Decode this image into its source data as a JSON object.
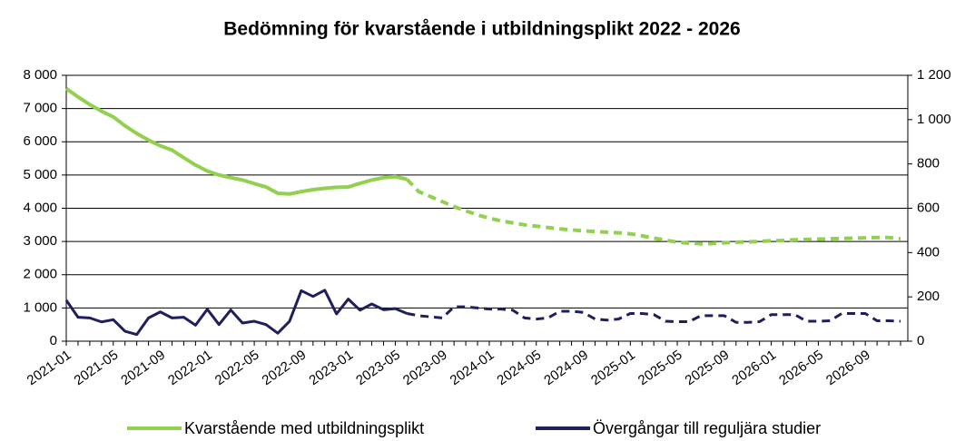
{
  "chart_data": {
    "type": "line",
    "title": "Bedömning för kvarstående i utbildningsplikt 2022 - 2026",
    "categories": [
      "2021-01",
      null,
      null,
      null,
      "2021-05",
      null,
      null,
      null,
      "2021-09",
      null,
      null,
      null,
      "2022-01",
      null,
      null,
      null,
      "2022-05",
      null,
      null,
      null,
      "2022-09",
      null,
      null,
      null,
      "2023-01",
      null,
      null,
      null,
      "2023-05",
      null,
      null,
      null,
      "2023-09",
      null,
      null,
      null,
      "2024-01",
      null,
      null,
      null,
      "2024-05",
      null,
      null,
      null,
      "2024-09",
      null,
      null,
      null,
      "2025-01",
      null,
      null,
      null,
      "2025-05",
      null,
      null,
      null,
      "2025-09",
      null,
      null,
      null,
      "2026-01",
      null,
      null,
      null,
      "2026-05",
      null,
      null,
      null,
      "2026-09",
      null,
      null,
      null
    ],
    "dashed_from": 29,
    "series": [
      {
        "name": "Kvarstående med utbildningsplikt",
        "color": "#92d050",
        "axis": "y",
        "values": [
          7600,
          7350,
          7120,
          6920,
          6750,
          6480,
          6250,
          6050,
          5880,
          5750,
          5520,
          5300,
          5120,
          5000,
          4920,
          4850,
          4740,
          4640,
          4450,
          4430,
          4500,
          4560,
          4600,
          4630,
          4640,
          4750,
          4850,
          4920,
          4950,
          4870,
          4500,
          4350,
          4200,
          4050,
          3920,
          3800,
          3700,
          3620,
          3560,
          3500,
          3460,
          3420,
          3380,
          3350,
          3320,
          3300,
          3280,
          3260,
          3230,
          3170,
          3100,
          3040,
          2980,
          2950,
          2930,
          2940,
          2960,
          2980,
          2990,
          3000,
          3020,
          3030,
          3050,
          3060,
          3070,
          3080,
          3090,
          3100,
          3110,
          3120,
          3120,
          3080
        ]
      },
      {
        "name": "Övergångar till reguljära studier",
        "color": "#1f1f5c",
        "axis": "y2",
        "values": [
          185,
          108,
          105,
          87,
          97,
          45,
          30,
          105,
          132,
          105,
          108,
          72,
          144,
          75,
          141,
          82,
          90,
          75,
          36,
          90,
          228,
          202,
          230,
          123,
          190,
          140,
          168,
          142,
          147,
          125,
          115,
          110,
          105,
          155,
          155,
          150,
          145,
          145,
          140,
          105,
          100,
          105,
          135,
          135,
          130,
          100,
          95,
          100,
          125,
          125,
          120,
          90,
          88,
          88,
          115,
          115,
          115,
          85,
          85,
          88,
          120,
          120,
          120,
          90,
          90,
          92,
          125,
          125,
          125,
          92,
          92,
          90
        ]
      }
    ],
    "ylim": [
      0,
      8000
    ],
    "yticks": [
      0,
      {
        "value": 1000,
        "label": "1 000"
      },
      {
        "value": 2000,
        "label": "2 000"
      },
      {
        "value": 3000,
        "label": "3 000"
      },
      {
        "value": 4000,
        "label": "4 000"
      },
      {
        "value": 5000,
        "label": "5 000"
      },
      {
        "value": 6000,
        "label": "6 000"
      },
      {
        "value": 7000,
        "label": "7 000"
      },
      {
        "value": 8000,
        "label": "8 000"
      }
    ],
    "y2lim": [
      0,
      1200
    ],
    "y2ticks": [
      0,
      200,
      400,
      600,
      800,
      {
        "value": 1000,
        "label": "1 000"
      },
      {
        "value": 1200,
        "label": "1 200"
      }
    ],
    "grid": true
  }
}
